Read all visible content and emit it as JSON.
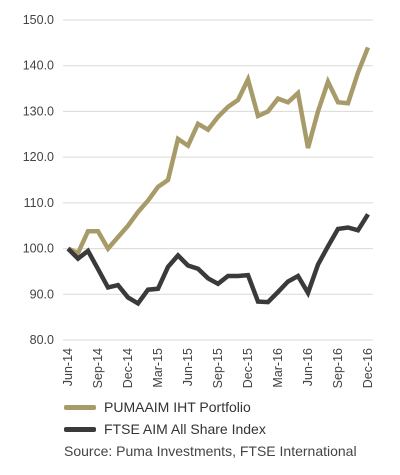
{
  "chart_data": {
    "type": "line",
    "ylim": [
      80,
      150
    ],
    "yticks": [
      "150.0",
      "140.0",
      "130.0",
      "120.0",
      "110.0",
      "100.0",
      "90.0",
      "80.0"
    ],
    "ytick_values": [
      150,
      140,
      130,
      120,
      110,
      100,
      90,
      80
    ],
    "x_labels": [
      "Jun-14",
      "Sep-14",
      "Dec-14",
      "Mar-15",
      "Jun-15",
      "Sep-15",
      "Dec-15",
      "Mar-16",
      "Jun-16",
      "Sep-16",
      "Dec-16"
    ],
    "grid": true,
    "series": [
      {
        "name": "PUMAAIM IHT Portfolio",
        "color": "#A89B6A",
        "values": [
          100.0,
          99.0,
          103.8,
          103.8,
          100.0,
          102.5,
          105.0,
          108.0,
          110.5,
          113.5,
          115.0,
          124.0,
          122.5,
          127.3,
          126.0,
          128.8,
          131.0,
          132.5,
          137.0,
          129.0,
          130.0,
          132.8,
          132.0,
          134.0,
          122.0,
          130.0,
          136.5,
          132.0,
          131.8,
          138.5,
          144.0
        ]
      },
      {
        "name": "FTSE AIM All Share Index",
        "color": "#3A3A3A",
        "values": [
          100.0,
          97.8,
          99.5,
          95.5,
          91.5,
          92.0,
          89.3,
          88.0,
          91.0,
          91.2,
          96.0,
          98.5,
          96.3,
          95.6,
          93.5,
          92.3,
          94.0,
          94.0,
          94.2,
          88.4,
          88.3,
          90.5,
          92.8,
          94.0,
          90.3,
          96.5,
          100.5,
          104.3,
          104.6,
          104.0,
          107.5
        ]
      }
    ]
  },
  "legend": {
    "items": [
      {
        "label": "PUMAAIM IHT Portfolio",
        "color": "#A89B6A"
      },
      {
        "label": "FTSE AIM All Share Index",
        "color": "#3A3A3A"
      }
    ]
  },
  "source": "Source: Puma Investments, FTSE International"
}
